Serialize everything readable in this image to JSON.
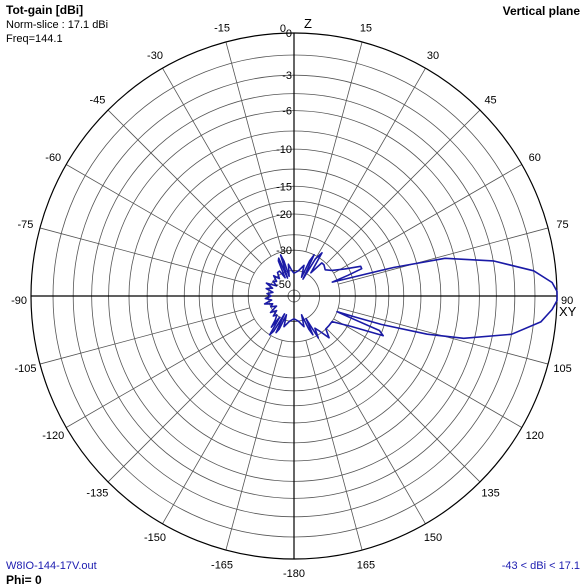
{
  "header": {
    "title": "Tot-gain [dBi]",
    "norm_slice": "Norm-slice : 17.1 dBi",
    "freq": "Freq=144.1",
    "plane": "Vertical plane"
  },
  "footer": {
    "file": "W8IO-144-17V.out",
    "phi": "Phi= 0",
    "range": "-43 < dBi < 17.1"
  },
  "chart_data": {
    "type": "polar",
    "title": "Tot-gain [dBi]",
    "plane": "Vertical plane",
    "axis_labels": {
      "zenith": "Z",
      "horizon": "XY"
    },
    "angle_labels": [
      "0",
      "15",
      "30",
      "45",
      "60",
      "75",
      "90",
      "105",
      "120",
      "135",
      "150",
      "165",
      "-180",
      "-165",
      "-150",
      "-135",
      "-120",
      "-105",
      "-90",
      "-75",
      "-60",
      "-45",
      "-30",
      "-15"
    ],
    "radial_ticks": [
      0,
      -3,
      -6,
      -10,
      -15,
      -20,
      -30
    ],
    "radial_center_label": "-50",
    "radial_range_db": [
      -50,
      0
    ],
    "norm_gain_dbi": 17.1,
    "line_color": "#1a1aa6",
    "series": [
      {
        "theta_deg": [
          0,
          10,
          18,
          22,
          24,
          26,
          28,
          30,
          33,
          36,
          40,
          44,
          50,
          56,
          62,
          66,
          68,
          69,
          70,
          72,
          74,
          76,
          80,
          84,
          87,
          89,
          90,
          91,
          93,
          96,
          100,
          104,
          106,
          108,
          109,
          110,
          111,
          112,
          114,
          118,
          124,
          130,
          136,
          140,
          144,
          147,
          150,
          152,
          154,
          156,
          158,
          162,
          170,
          180,
          190,
          198,
          202,
          204,
          206,
          208,
          210,
          212,
          214,
          216,
          218,
          222,
          226,
          230,
          235,
          240,
          245,
          250,
          255,
          260,
          265,
          270,
          275,
          280,
          285,
          290,
          295,
          300,
          305,
          310,
          315,
          320,
          325,
          330,
          334,
          336,
          338,
          340,
          342,
          344,
          346,
          350,
          355,
          360
        ],
        "gain_db": [
          -42,
          -40,
          -36,
          -44,
          -33,
          -30,
          -45,
          -31,
          -28,
          -38,
          -31,
          -31,
          -32,
          -30,
          -26,
          -22,
          -22,
          -26,
          -32,
          -26,
          -16,
          -9,
          -4.5,
          -1.5,
          -0.3,
          0,
          0,
          0,
          -0.3,
          -1,
          -3,
          -7,
          -11,
          -18,
          -24,
          -30,
          -26,
          -18,
          -17,
          -24,
          -30,
          -30,
          -30,
          -27,
          -31,
          -33,
          -29,
          -40,
          -31,
          -34,
          -44,
          -36,
          -40,
          -42,
          -40,
          -36,
          -44,
          -34,
          -32,
          -44,
          -32,
          -30,
          -40,
          -33,
          -37,
          -40,
          -38,
          -42,
          -38,
          -44,
          -40,
          -42,
          -37,
          -42,
          -38,
          -42,
          -39,
          -43,
          -38,
          -42,
          -37,
          -44,
          -40,
          -42,
          -38,
          -42,
          -38,
          -38,
          -44,
          -33,
          -32,
          -45,
          -31,
          -34,
          -44,
          -36,
          -40,
          -42
        ]
      }
    ]
  }
}
